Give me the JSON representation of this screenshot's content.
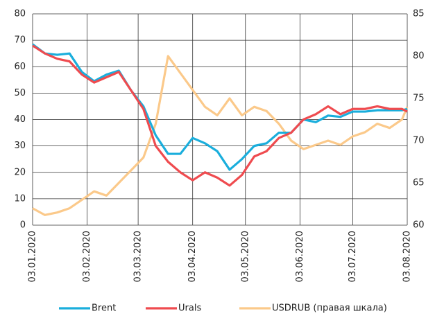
{
  "chart_data": {
    "type": "line",
    "x": [
      "2020-01-03",
      "2020-01-10",
      "2020-01-17",
      "2020-01-24",
      "2020-01-31",
      "2020-02-07",
      "2020-02-14",
      "2020-02-21",
      "2020-02-28",
      "2020-03-06",
      "2020-03-13",
      "2020-03-20",
      "2020-03-27",
      "2020-04-03",
      "2020-04-10",
      "2020-04-17",
      "2020-04-24",
      "2020-05-01",
      "2020-05-08",
      "2020-05-15",
      "2020-05-22",
      "2020-05-29",
      "2020-06-05",
      "2020-06-12",
      "2020-06-19",
      "2020-06-26",
      "2020-07-03",
      "2020-07-10",
      "2020-07-17",
      "2020-07-24",
      "2020-07-31",
      "2020-08-03"
    ],
    "series": [
      {
        "name": "Brent",
        "color": "#1aaedc",
        "values": [
          68.5,
          65,
          64.5,
          65,
          58,
          54.5,
          57,
          58.5,
          51,
          45,
          34,
          27,
          27,
          33,
          31,
          28,
          21,
          25,
          30,
          31,
          35,
          35,
          40,
          39,
          41.5,
          41,
          43,
          43,
          43.5,
          43.5,
          43.5,
          44
        ]
      },
      {
        "name": "Urals",
        "color": "#ef4b4f",
        "values": [
          68,
          65,
          63,
          62,
          57,
          54,
          56,
          58,
          51,
          44,
          30,
          24,
          20,
          17,
          20,
          18,
          15,
          19,
          26,
          28,
          33,
          35,
          40,
          42,
          45,
          42,
          44,
          44,
          45,
          44,
          44,
          43
        ]
      },
      {
        "name": "USDRUB (правая шкала)",
        "color": "#fbc98a",
        "axis": "y2",
        "values": [
          62,
          61.2,
          61.5,
          62,
          63,
          64,
          63.5,
          65,
          66.5,
          68,
          72,
          80,
          78,
          76,
          74,
          73,
          75,
          73,
          74,
          73.5,
          72,
          70,
          69,
          69.5,
          70,
          69.5,
          70.5,
          71,
          72,
          71.5,
          72.5,
          74
        ]
      }
    ],
    "xlim": [
      "2020-01-03",
      "2020-08-03"
    ],
    "xticks": [
      {
        "value": "2020-01-03",
        "label": "03.01.2020"
      },
      {
        "value": "2020-02-03",
        "label": "03.02.2020"
      },
      {
        "value": "2020-03-03",
        "label": "03.03.2020"
      },
      {
        "value": "2020-04-03",
        "label": "03.04.2020"
      },
      {
        "value": "2020-05-03",
        "label": "03.05.2020"
      },
      {
        "value": "2020-06-03",
        "label": "03.06.2020"
      },
      {
        "value": "2020-07-03",
        "label": "03.07.2020"
      },
      {
        "value": "2020-08-03",
        "label": "03.08.2020"
      }
    ],
    "ylim": [
      0,
      80
    ],
    "yticks": [
      0,
      10,
      20,
      30,
      40,
      50,
      60,
      70,
      80
    ],
    "y2lim": [
      60,
      85
    ],
    "y2ticks": [
      60,
      65,
      70,
      75,
      80,
      85
    ],
    "grid": true,
    "legend": "bottom"
  }
}
